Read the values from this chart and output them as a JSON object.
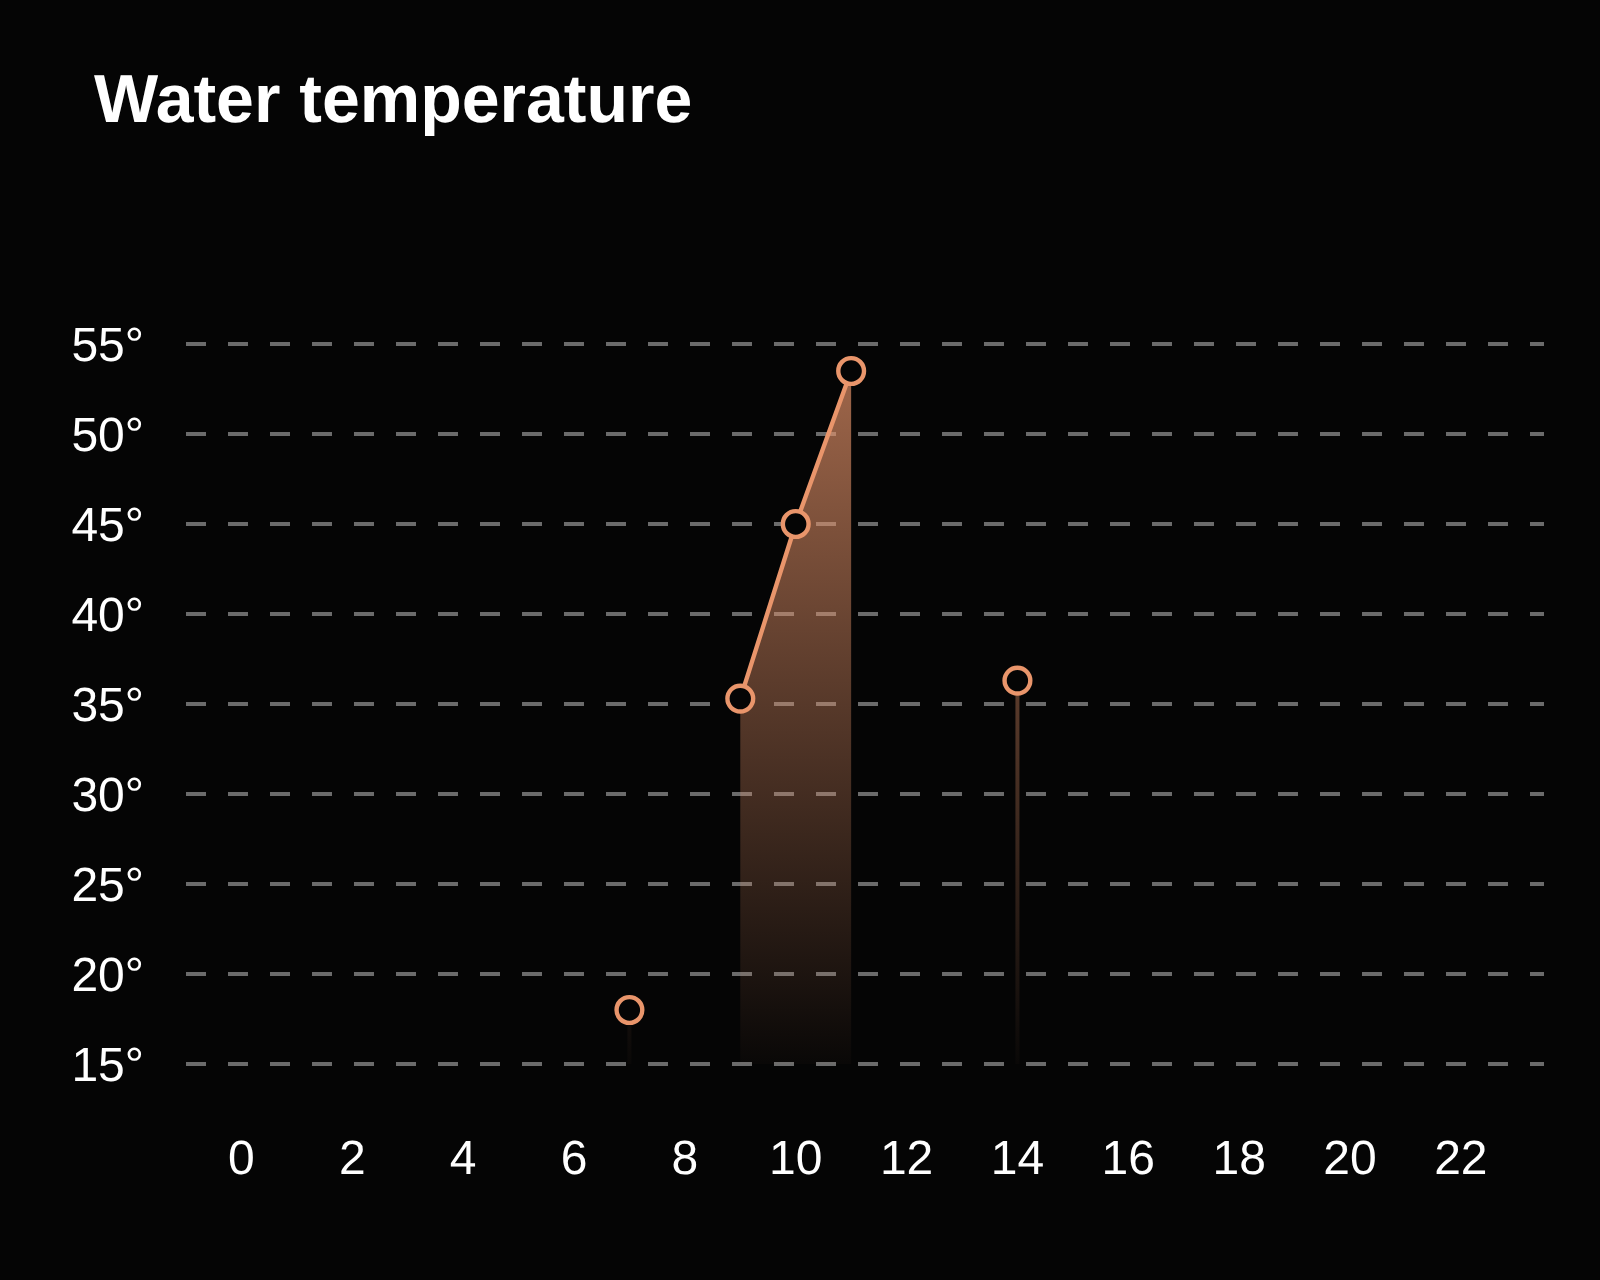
{
  "chart_data": {
    "type": "area",
    "title": "Water temperature",
    "x": [
      7,
      8,
      9,
      10,
      11,
      12,
      13,
      14
    ],
    "series": [
      {
        "color": "#e9956b",
        "values": [
          18,
          null,
          35.3,
          45,
          53.5,
          null,
          null,
          36.3
        ]
      }
    ],
    "xlim": [
      -1,
      23.5
    ],
    "xticks": [
      0,
      2,
      4,
      6,
      8,
      10,
      12,
      14,
      16,
      18,
      20,
      22
    ],
    "ylim": [
      15,
      55
    ],
    "yticks": [
      {
        "value": 15,
        "label": "15°"
      },
      {
        "value": 20,
        "label": "20°"
      },
      {
        "value": 25,
        "label": "25°"
      },
      {
        "value": 30,
        "label": "30°"
      },
      {
        "value": 35,
        "label": "35°"
      },
      {
        "value": 40,
        "label": "40°"
      },
      {
        "value": 45,
        "label": "45°"
      },
      {
        "value": 50,
        "label": "50°"
      },
      {
        "value": 55,
        "label": "55°"
      }
    ],
    "grid": "y",
    "marker": "circle"
  }
}
